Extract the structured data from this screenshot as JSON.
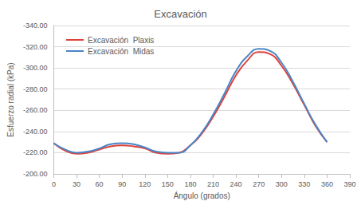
{
  "chart_data": {
    "type": "line",
    "title": "Excavación",
    "x_label": "Ángulo (grados)",
    "y_label": "Esfuerzo radial (kPa)",
    "x": [
      0,
      15,
      30,
      45,
      60,
      75,
      90,
      105,
      120,
      135,
      150,
      165,
      180,
      195,
      210,
      225,
      240,
      255,
      270,
      285,
      300,
      315,
      330,
      345,
      360
    ],
    "series": [
      {
        "name": "Excavación  Plaxis",
        "color": "#e0403a",
        "line_style": "solid",
        "marker": "none",
        "values": [
          -229,
          -222,
          -219,
          -220,
          -223,
          -226,
          -227,
          -226,
          -224,
          -220,
          -219,
          -220,
          -227,
          -238,
          -254,
          -273,
          -293,
          -307,
          -315,
          -313,
          -302,
          -285,
          -265,
          -245,
          -230
        ]
      },
      {
        "name": "Excavación  Midas",
        "color": "#4a86c5",
        "line_style": "solid",
        "marker": "none",
        "values": [
          -229,
          -223,
          -220,
          -221,
          -224,
          -228,
          -229,
          -228,
          -225,
          -221,
          -220,
          -220,
          -227,
          -239,
          -256,
          -276,
          -297,
          -311,
          -318,
          -316,
          -305,
          -287,
          -266,
          -246,
          -230
        ]
      }
    ],
    "xlim": [
      0,
      390
    ],
    "xticks": [
      0,
      30,
      60,
      90,
      120,
      150,
      180,
      210,
      240,
      270,
      300,
      330,
      360,
      390
    ],
    "ylim": [
      -200,
      -340
    ],
    "yticks": [
      {
        "value": -200,
        "label": "-200.00"
      },
      {
        "value": -220,
        "label": "-220.00"
      },
      {
        "value": -240,
        "label": "-240.00"
      },
      {
        "value": -260,
        "label": "-260.00"
      },
      {
        "value": -280,
        "label": "-280.00"
      },
      {
        "value": -300,
        "label": "-300.00"
      },
      {
        "value": -320,
        "label": "-320.00"
      },
      {
        "value": -340,
        "label": "-340.00"
      }
    ],
    "grid": true,
    "legend": "upper left"
  }
}
